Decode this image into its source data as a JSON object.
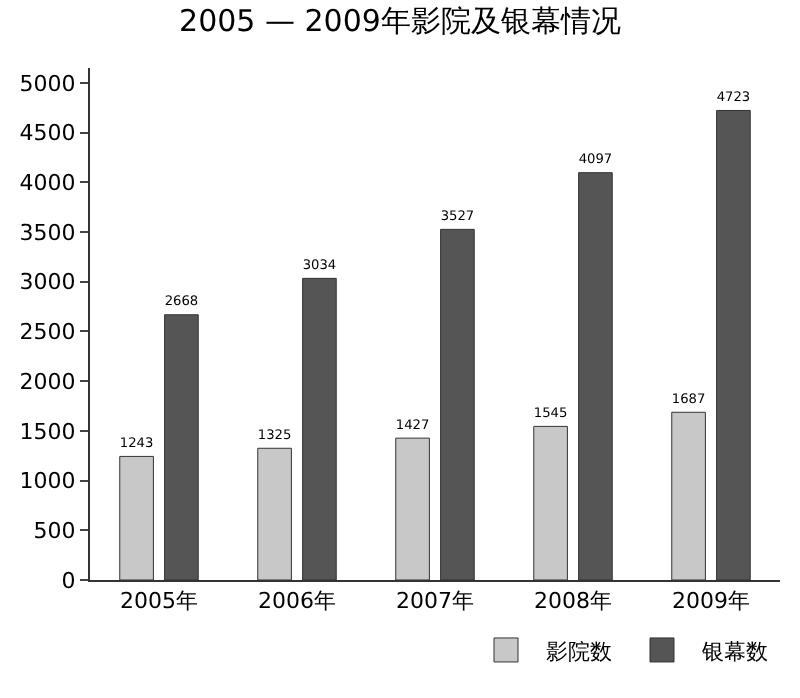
{
  "chart_data": {
    "type": "bar",
    "title": "2005 — 2009年影院及银幕情况",
    "categories": [
      "2005年",
      "2006年",
      "2007年",
      "2008年",
      "2009年"
    ],
    "series": [
      {
        "name": "影院数",
        "color": "#c8c8c8",
        "values": [
          1243,
          1325,
          1427,
          1545,
          1687
        ]
      },
      {
        "name": "银幕数",
        "color": "#555555",
        "values": [
          2668,
          3034,
          3527,
          4097,
          4723
        ]
      }
    ],
    "ylim": [
      0,
      5150
    ],
    "yticks": [
      0,
      500,
      1000,
      1500,
      2000,
      2500,
      3000,
      3500,
      4000,
      4500,
      5000
    ],
    "data_labels": true,
    "legend": "bottom right",
    "grid": false
  }
}
